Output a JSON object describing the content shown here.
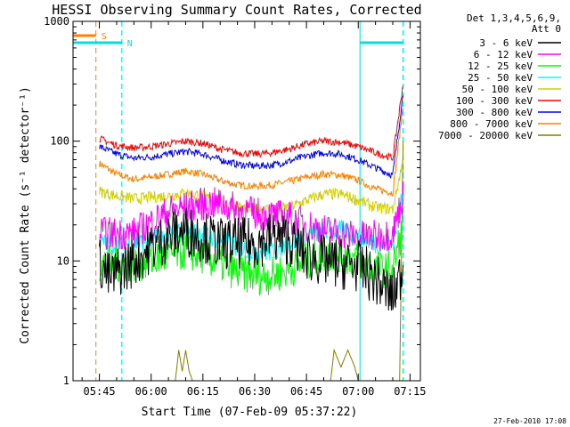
{
  "chart_data": {
    "type": "line",
    "title": "HESSI Observing Summary Count Rates, Corrected",
    "xlabel": "Start Time (07-Feb-09 05:37:22)",
    "ylabel": "Corrected Count Rate (s⁻¹ detector⁻¹)",
    "y_scale": "log",
    "ylim": [
      1,
      1000
    ],
    "xlim": [
      "05:37:22",
      "07:18:00"
    ],
    "x_ticks": [
      "05:45",
      "06:00",
      "06:15",
      "06:30",
      "06:45",
      "07:00",
      "07:15"
    ],
    "y_ticks": [
      "1",
      "10",
      "100",
      "1000"
    ],
    "grid": false,
    "legend_position": "right",
    "legend_header": [
      "Det 1,3,4,5,6,9,",
      "Att 0"
    ],
    "markers": [
      {
        "label": "S",
        "color": "#ff8000",
        "time_range": [
          "05:37:22",
          "05:44:00"
        ]
      },
      {
        "label": "N",
        "color": "#00e0e0",
        "time_range": [
          "05:37:22",
          "05:51:30"
        ]
      },
      {
        "label": "",
        "color": "#00e0e0",
        "time_range": [
          "07:00:30",
          "07:13:00"
        ]
      }
    ],
    "vertical_lines": [
      {
        "time": "05:44:00",
        "color": "#ff8000",
        "style": "dashed"
      },
      {
        "time": "05:51:30",
        "color": "#00e0e0",
        "style": "dashed"
      },
      {
        "time": "07:00:30",
        "color": "#00e0e0",
        "style": "solid"
      },
      {
        "time": "07:13:00",
        "color": "#00e0e0",
        "style": "dashed"
      }
    ],
    "series": [
      {
        "name": "3 - 6 keV",
        "color": "#000000",
        "noise": 0.22,
        "x": [
          "05:45",
          "05:48",
          "05:50",
          "05:55",
          "06:00",
          "06:05",
          "06:10",
          "06:15",
          "06:20",
          "06:25",
          "06:30",
          "06:35",
          "06:40",
          "06:45",
          "06:50",
          "06:55",
          "07:00",
          "07:05",
          "07:10",
          "07:13"
        ],
        "values": [
          10,
          7,
          8,
          10,
          13,
          16,
          18,
          16,
          14,
          14,
          14,
          16,
          15,
          11,
          10,
          9.5,
          9,
          7,
          5,
          9
        ]
      },
      {
        "name": "6 - 12 keV",
        "color": "#ff00ff",
        "noise": 0.14,
        "x": [
          "05:45",
          "05:50",
          "05:55",
          "06:00",
          "06:05",
          "06:10",
          "06:15",
          "06:20",
          "06:25",
          "06:30",
          "06:35",
          "06:40",
          "06:45",
          "06:50",
          "06:55",
          "07:00",
          "07:05",
          "07:10",
          "07:13"
        ],
        "values": [
          17,
          17,
          17,
          21,
          26,
          28,
          30,
          30,
          27,
          25,
          24,
          23,
          20,
          18,
          17,
          16,
          16,
          17,
          35
        ]
      },
      {
        "name": "12 - 25 keV",
        "color": "#00ff00",
        "noise": 0.16,
        "x": [
          "05:45",
          "05:50",
          "05:55",
          "06:00",
          "06:05",
          "06:10",
          "06:15",
          "06:20",
          "06:25",
          "06:30",
          "06:35",
          "06:40",
          "06:45",
          "06:50",
          "06:55",
          "07:00",
          "07:05",
          "07:10",
          "07:13"
        ],
        "values": [
          9.5,
          9.5,
          9.5,
          10,
          11,
          12,
          11,
          9.5,
          8,
          7.5,
          7.5,
          8.5,
          10,
          11.5,
          11.5,
          10,
          8.5,
          8.5,
          20
        ]
      },
      {
        "name": "25 - 50 keV",
        "color": "#00ffff",
        "noise": 0.09,
        "x": [
          "05:45",
          "05:50",
          "05:55",
          "06:00",
          "06:05",
          "06:10",
          "06:15",
          "06:20",
          "06:25",
          "06:30",
          "06:35",
          "06:40",
          "06:45",
          "06:50",
          "06:55",
          "07:00",
          "07:05",
          "07:10",
          "07:13"
        ],
        "values": [
          14,
          14,
          14,
          15,
          16,
          18,
          17,
          15,
          13,
          12,
          12,
          14,
          16,
          18,
          18,
          16,
          14,
          14,
          40
        ]
      },
      {
        "name": "50 - 100 keV",
        "color": "#d0d000",
        "noise": 0.05,
        "x": [
          "05:45",
          "05:50",
          "05:55",
          "06:00",
          "06:05",
          "06:10",
          "06:15",
          "06:20",
          "06:25",
          "06:30",
          "06:35",
          "06:40",
          "06:45",
          "06:50",
          "06:55",
          "07:00",
          "07:05",
          "07:10",
          "07:13"
        ],
        "values": [
          38,
          35,
          33,
          34,
          35,
          37,
          35,
          31,
          28,
          27,
          27,
          28,
          32,
          36,
          36,
          32,
          28,
          27,
          70
        ]
      },
      {
        "name": "100 - 300 keV",
        "color": "#ff0000",
        "noise": 0.03,
        "x": [
          "05:45",
          "05:50",
          "05:55",
          "06:00",
          "06:05",
          "06:10",
          "06:15",
          "06:20",
          "06:25",
          "06:30",
          "06:35",
          "06:40",
          "06:45",
          "06:50",
          "06:55",
          "07:00",
          "07:05",
          "07:10",
          "07:13"
        ],
        "values": [
          105,
          92,
          88,
          90,
          95,
          100,
          96,
          86,
          80,
          78,
          80,
          86,
          95,
          100,
          98,
          90,
          80,
          72,
          300
        ]
      },
      {
        "name": "300 - 800 keV",
        "color": "#0000ff",
        "noise": 0.03,
        "x": [
          "05:45",
          "05:50",
          "05:55",
          "06:00",
          "06:05",
          "06:10",
          "06:15",
          "06:20",
          "06:25",
          "06:30",
          "06:35",
          "06:40",
          "06:45",
          "06:50",
          "06:55",
          "07:00",
          "07:05",
          "07:10",
          "07:13"
        ],
        "values": [
          90,
          78,
          72,
          74,
          78,
          82,
          78,
          70,
          64,
          62,
          63,
          68,
          75,
          80,
          78,
          70,
          60,
          52,
          250
        ]
      },
      {
        "name": "800 - 7000 keV",
        "color": "#ff8000",
        "noise": 0.03,
        "x": [
          "05:45",
          "05:50",
          "05:55",
          "06:00",
          "06:05",
          "06:10",
          "06:15",
          "06:20",
          "06:25",
          "06:30",
          "06:35",
          "06:40",
          "06:45",
          "06:50",
          "06:55",
          "07:00",
          "07:05",
          "07:10",
          "07:13"
        ],
        "values": [
          65,
          53,
          48,
          50,
          53,
          56,
          53,
          47,
          43,
          42,
          43,
          46,
          50,
          53,
          52,
          47,
          40,
          37,
          200
        ]
      },
      {
        "name": "7000 - 20000 keV",
        "color": "#808000",
        "noise": 0.0,
        "x": [
          "05:45",
          "06:07",
          "06:08",
          "06:09",
          "06:10",
          "06:11",
          "06:12",
          "06:52",
          "06:53",
          "06:55",
          "06:57",
          "06:59",
          "07:00",
          "07:12",
          "07:13"
        ],
        "values": [
          1,
          1,
          1.8,
          1.2,
          1.8,
          1.2,
          1,
          1,
          1.8,
          1.3,
          1.8,
          1.3,
          1,
          1,
          100
        ]
      }
    ]
  },
  "footer": {
    "timestamp": "27-Feb-2010 17:08"
  }
}
